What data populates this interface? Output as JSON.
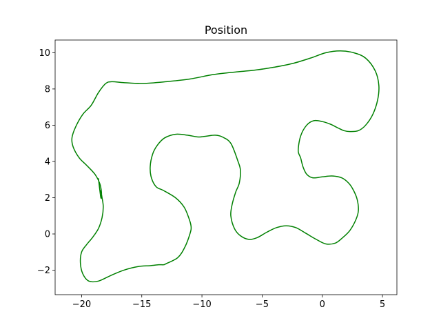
{
  "chart_data": {
    "type": "line",
    "title": "Position",
    "xlabel": "",
    "ylabel": "",
    "xlim": [
      -22.2,
      6.2
    ],
    "ylim": [
      -3.35,
      10.7
    ],
    "xticks": [
      -20,
      -15,
      -10,
      -5,
      0,
      5
    ],
    "xtick_labels": [
      "−20",
      "−15",
      "−10",
      "−5",
      "0",
      "5"
    ],
    "yticks": [
      -2,
      0,
      2,
      4,
      6,
      8,
      10
    ],
    "ytick_labels": [
      "−2",
      "0",
      "2",
      "4",
      "6",
      "8",
      "10"
    ],
    "grid": false,
    "legend": "none",
    "series": [
      {
        "color": "#008000",
        "x": [
          -18.4,
          -18.3,
          -18.2,
          -18.3,
          -18.6,
          -19.1,
          -19.6,
          -20.0,
          -20.1,
          -19.9,
          -19.4,
          -18.6,
          -17.6,
          -16.5,
          -15.3,
          -14.3,
          -13.6,
          -13.2,
          -13.0,
          -12.0,
          -11.4,
          -11.0,
          -10.9,
          -11.1,
          -11.5,
          -12.2,
          -13.2,
          -13.8,
          -14.2,
          -14.3,
          -14.1,
          -13.7,
          -13.1,
          -12.2,
          -11.2,
          -10.3,
          -9.6,
          -8.9,
          -8.3,
          -7.6,
          -7.0,
          -6.8,
          -6.9,
          -7.2,
          -7.5,
          -7.6,
          -7.3,
          -6.8,
          -6.1,
          -5.4,
          -4.6,
          -3.8,
          -3.0,
          -2.2,
          -1.4,
          -0.5,
          0.3,
          1.1,
          1.7,
          2.3,
          2.8,
          3.0,
          2.9,
          2.6,
          2.2,
          1.6,
          0.8,
          0.0,
          -0.8,
          -1.3,
          -1.6,
          -1.8,
          -2.0,
          -1.8,
          -1.3,
          -0.7,
          0.0,
          0.7,
          1.3,
          1.8,
          2.3,
          3.0,
          3.6,
          4.2,
          4.6,
          4.7,
          4.4,
          3.6,
          2.6,
          1.5,
          0.3,
          -1.0,
          -2.5,
          -4.0,
          -5.5,
          -7.0,
          -9.0,
          -11.0,
          -13.0,
          -15.0,
          -16.5,
          -17.5,
          -18.0,
          -18.6,
          -19.2,
          -19.9,
          -20.5,
          -20.8,
          -20.7,
          -20.2,
          -19.6,
          -18.9,
          -18.5,
          -18.35,
          -18.4,
          -18.6
        ],
        "y": [
          2.4,
          2.0,
          1.5,
          0.9,
          0.3,
          -0.2,
          -0.6,
          -1.0,
          -1.6,
          -2.2,
          -2.6,
          -2.6,
          -2.3,
          -2.0,
          -1.8,
          -1.75,
          -1.7,
          -1.7,
          -1.65,
          -1.3,
          -0.7,
          0.0,
          0.4,
          0.9,
          1.5,
          2.0,
          2.4,
          2.6,
          3.1,
          3.7,
          4.4,
          4.9,
          5.3,
          5.5,
          5.45,
          5.35,
          5.4,
          5.45,
          5.35,
          5.0,
          4.0,
          3.5,
          2.8,
          2.3,
          1.6,
          1.0,
          0.3,
          -0.1,
          -0.3,
          -0.2,
          0.1,
          0.35,
          0.45,
          0.35,
          0.05,
          -0.3,
          -0.55,
          -0.5,
          -0.2,
          0.2,
          0.8,
          1.3,
          1.9,
          2.4,
          2.8,
          3.1,
          3.2,
          3.15,
          3.1,
          3.3,
          3.7,
          4.2,
          4.6,
          5.4,
          6.0,
          6.25,
          6.2,
          6.05,
          5.85,
          5.7,
          5.65,
          5.7,
          6.0,
          6.6,
          7.4,
          8.2,
          9.0,
          9.7,
          10.0,
          10.1,
          10.0,
          9.7,
          9.4,
          9.2,
          9.05,
          8.95,
          8.8,
          8.55,
          8.4,
          8.3,
          8.35,
          8.4,
          8.3,
          7.8,
          7.1,
          6.6,
          5.9,
          5.3,
          4.8,
          4.2,
          3.8,
          3.3,
          2.8,
          2.3,
          2.0,
          3.05
        ]
      }
    ]
  }
}
